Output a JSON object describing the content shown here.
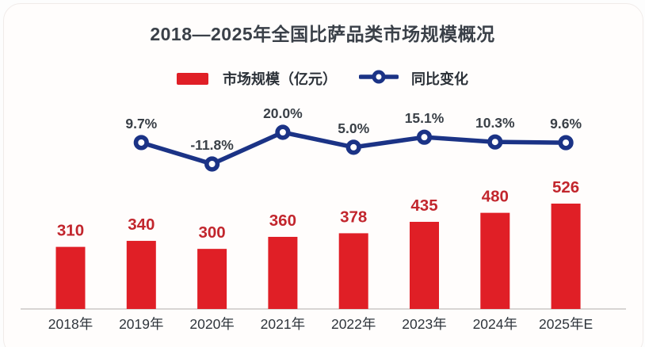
{
  "title": "2018—2025年全国比萨品类市场规模概况",
  "legend": {
    "bar_label": "市场规模（亿元）",
    "line_label": "同比变化"
  },
  "colors": {
    "bar": "#e01f26",
    "bar_value_label": "#c2262d",
    "line": "#1b3386",
    "marker_fill": "#ffffff",
    "percent_label": "#3a4047",
    "x_label": "#2f353c",
    "axis_line": "#d8d5d3",
    "title_text": "#3a4048",
    "legend_text": "#2b3138",
    "card_bg": "#fffdfc"
  },
  "chart_data": {
    "type": "bar",
    "title": "2018—2025年全国比萨品类市场规模概况",
    "categories": [
      "2018年",
      "2019年",
      "2020年",
      "2021年",
      "2022年",
      "2023年",
      "2024年",
      "2025年E"
    ],
    "series": [
      {
        "name": "市场规模（亿元）",
        "kind": "bar",
        "values": [
          310,
          340,
          300,
          360,
          378,
          435,
          480,
          526
        ],
        "value_labels": [
          "310",
          "340",
          "300",
          "360",
          "378",
          "435",
          "480",
          "526"
        ]
      },
      {
        "name": "同比变化",
        "kind": "line",
        "unit": "%",
        "values": [
          null,
          9.7,
          -11.8,
          20.0,
          5.0,
          15.1,
          10.3,
          9.6
        ],
        "point_labels": [
          "",
          "9.7%",
          "-11.8%",
          "20.0%",
          "5.0%",
          "15.1%",
          "10.3%",
          "9.6%"
        ]
      }
    ],
    "xlabel": "",
    "ylabel": "",
    "bar_axis_range": [
      0,
      600
    ],
    "line_axis_range": [
      -20,
      25
    ],
    "grid": false,
    "legend_position": "top"
  }
}
